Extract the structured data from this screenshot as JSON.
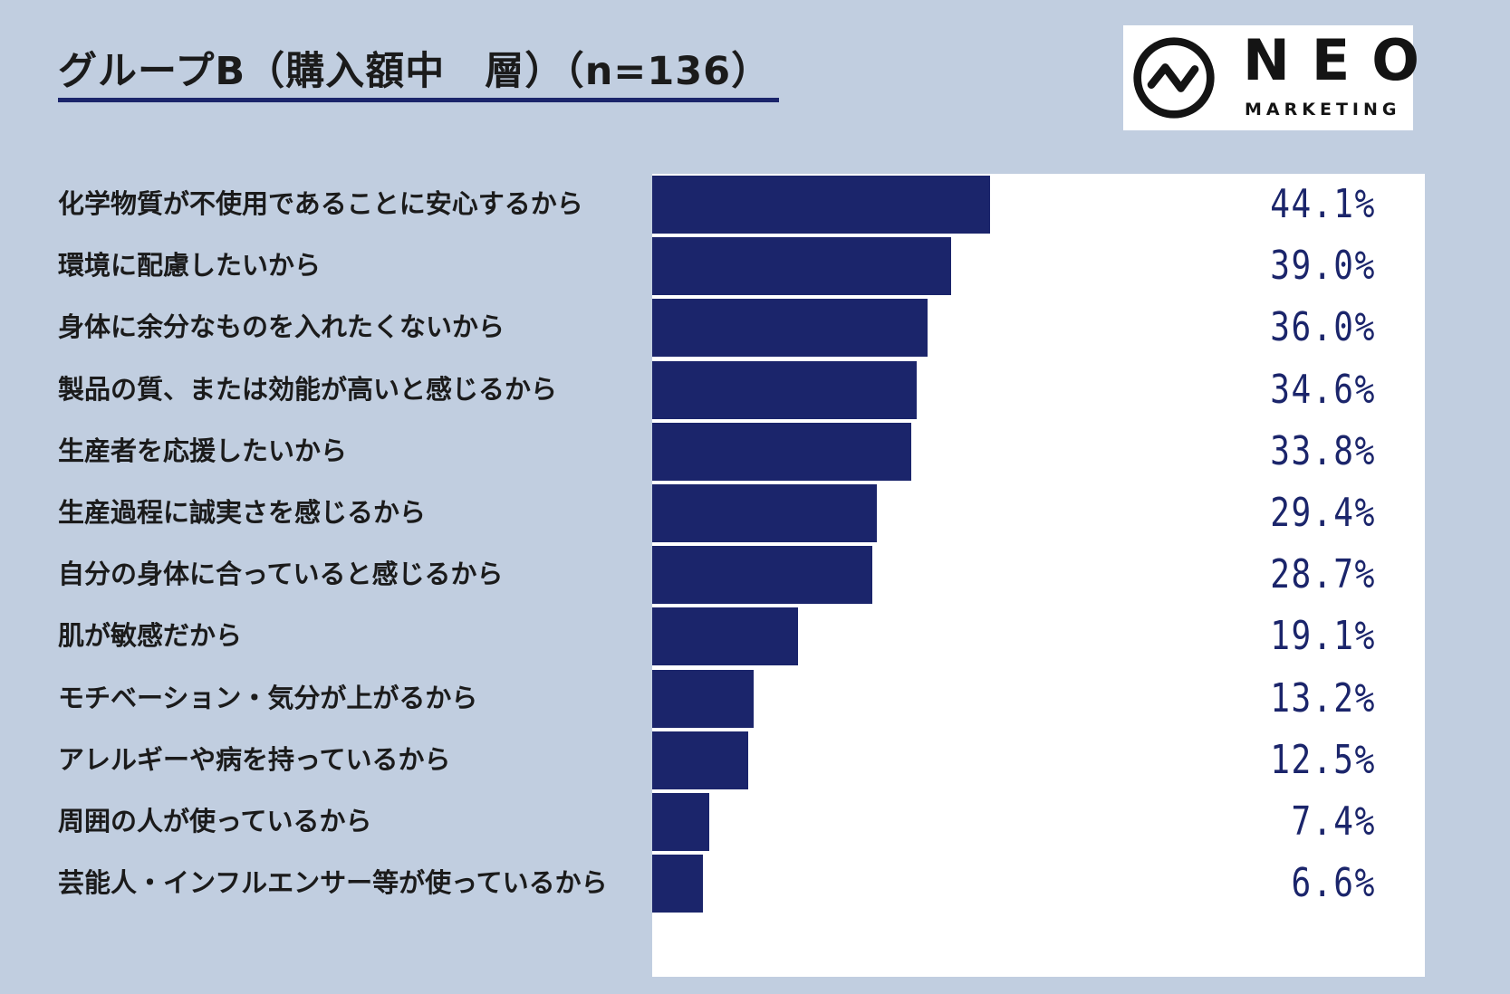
{
  "title": "グループB（購入額中　層）（n=136）",
  "logo": {
    "word": "NEO",
    "sub": "MARKETING"
  },
  "colors": {
    "background": "#c1cee0",
    "bar": "#1b256b",
    "value_text": "#1b256b",
    "underline": "#1b256b",
    "plot_background": "#ffffff"
  },
  "chart_data": {
    "type": "bar",
    "orientation": "horizontal",
    "unit": "%",
    "xlim": [
      0,
      100
    ],
    "categories": [
      "化学物質が不使用であることに安心するから",
      "環境に配慮したいから",
      "身体に余分なものを入れたくないから",
      "製品の質、または効能が高いと感じるから",
      "生産者を応援したいから",
      "生産過程に誠実さを感じるから",
      "自分の身体に合っていると感じるから",
      "肌が敏感だから",
      "モチベーション・気分が上がるから",
      "アレルギーや病を持っているから",
      "周囲の人が使っているから",
      "芸能人・インフルエンサー等が使っているから"
    ],
    "values": [
      44.1,
      39.0,
      36.0,
      34.6,
      33.8,
      29.4,
      28.7,
      19.1,
      13.2,
      12.5,
      7.4,
      6.6
    ],
    "value_labels": [
      "44.1%",
      "39.0%",
      "36.0%",
      "34.6%",
      "33.8%",
      "29.4%",
      "28.7%",
      "19.1%",
      "13.2%",
      "12.5%",
      "7.4%",
      "6.6%"
    ]
  }
}
